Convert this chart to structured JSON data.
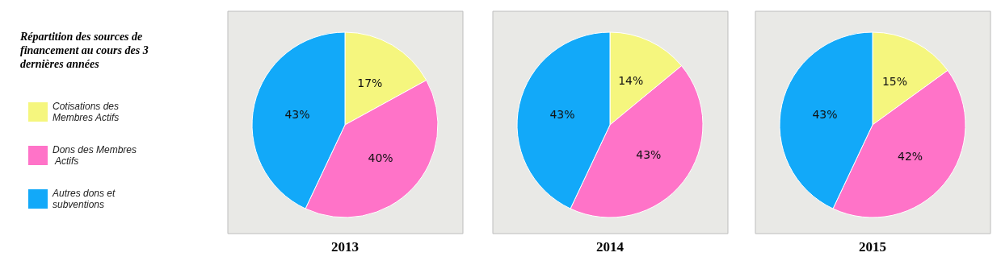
{
  "chart_data": {
    "type": "pie",
    "title": "Répartition des sources de financement au cours des 3 dernières années",
    "legend": "left",
    "categories": [
      "Cotisations des Membres Actifs",
      "Dons des Membres Actifs",
      "Autres dons et subventions"
    ],
    "colors": [
      "#f5f67e",
      "#ff73c8",
      "#12a9f9"
    ],
    "series": [
      {
        "name": "2013",
        "values": [
          17,
          40,
          43
        ],
        "value_labels": [
          "17%",
          "40%",
          "43%"
        ]
      },
      {
        "name": "2014",
        "values": [
          14,
          43,
          43
        ],
        "value_labels": [
          "14%",
          "43%",
          "43%"
        ]
      },
      {
        "name": "2015",
        "values": [
          15,
          42,
          43
        ],
        "value_labels": [
          "15%",
          "42%",
          "43%"
        ]
      }
    ]
  }
}
